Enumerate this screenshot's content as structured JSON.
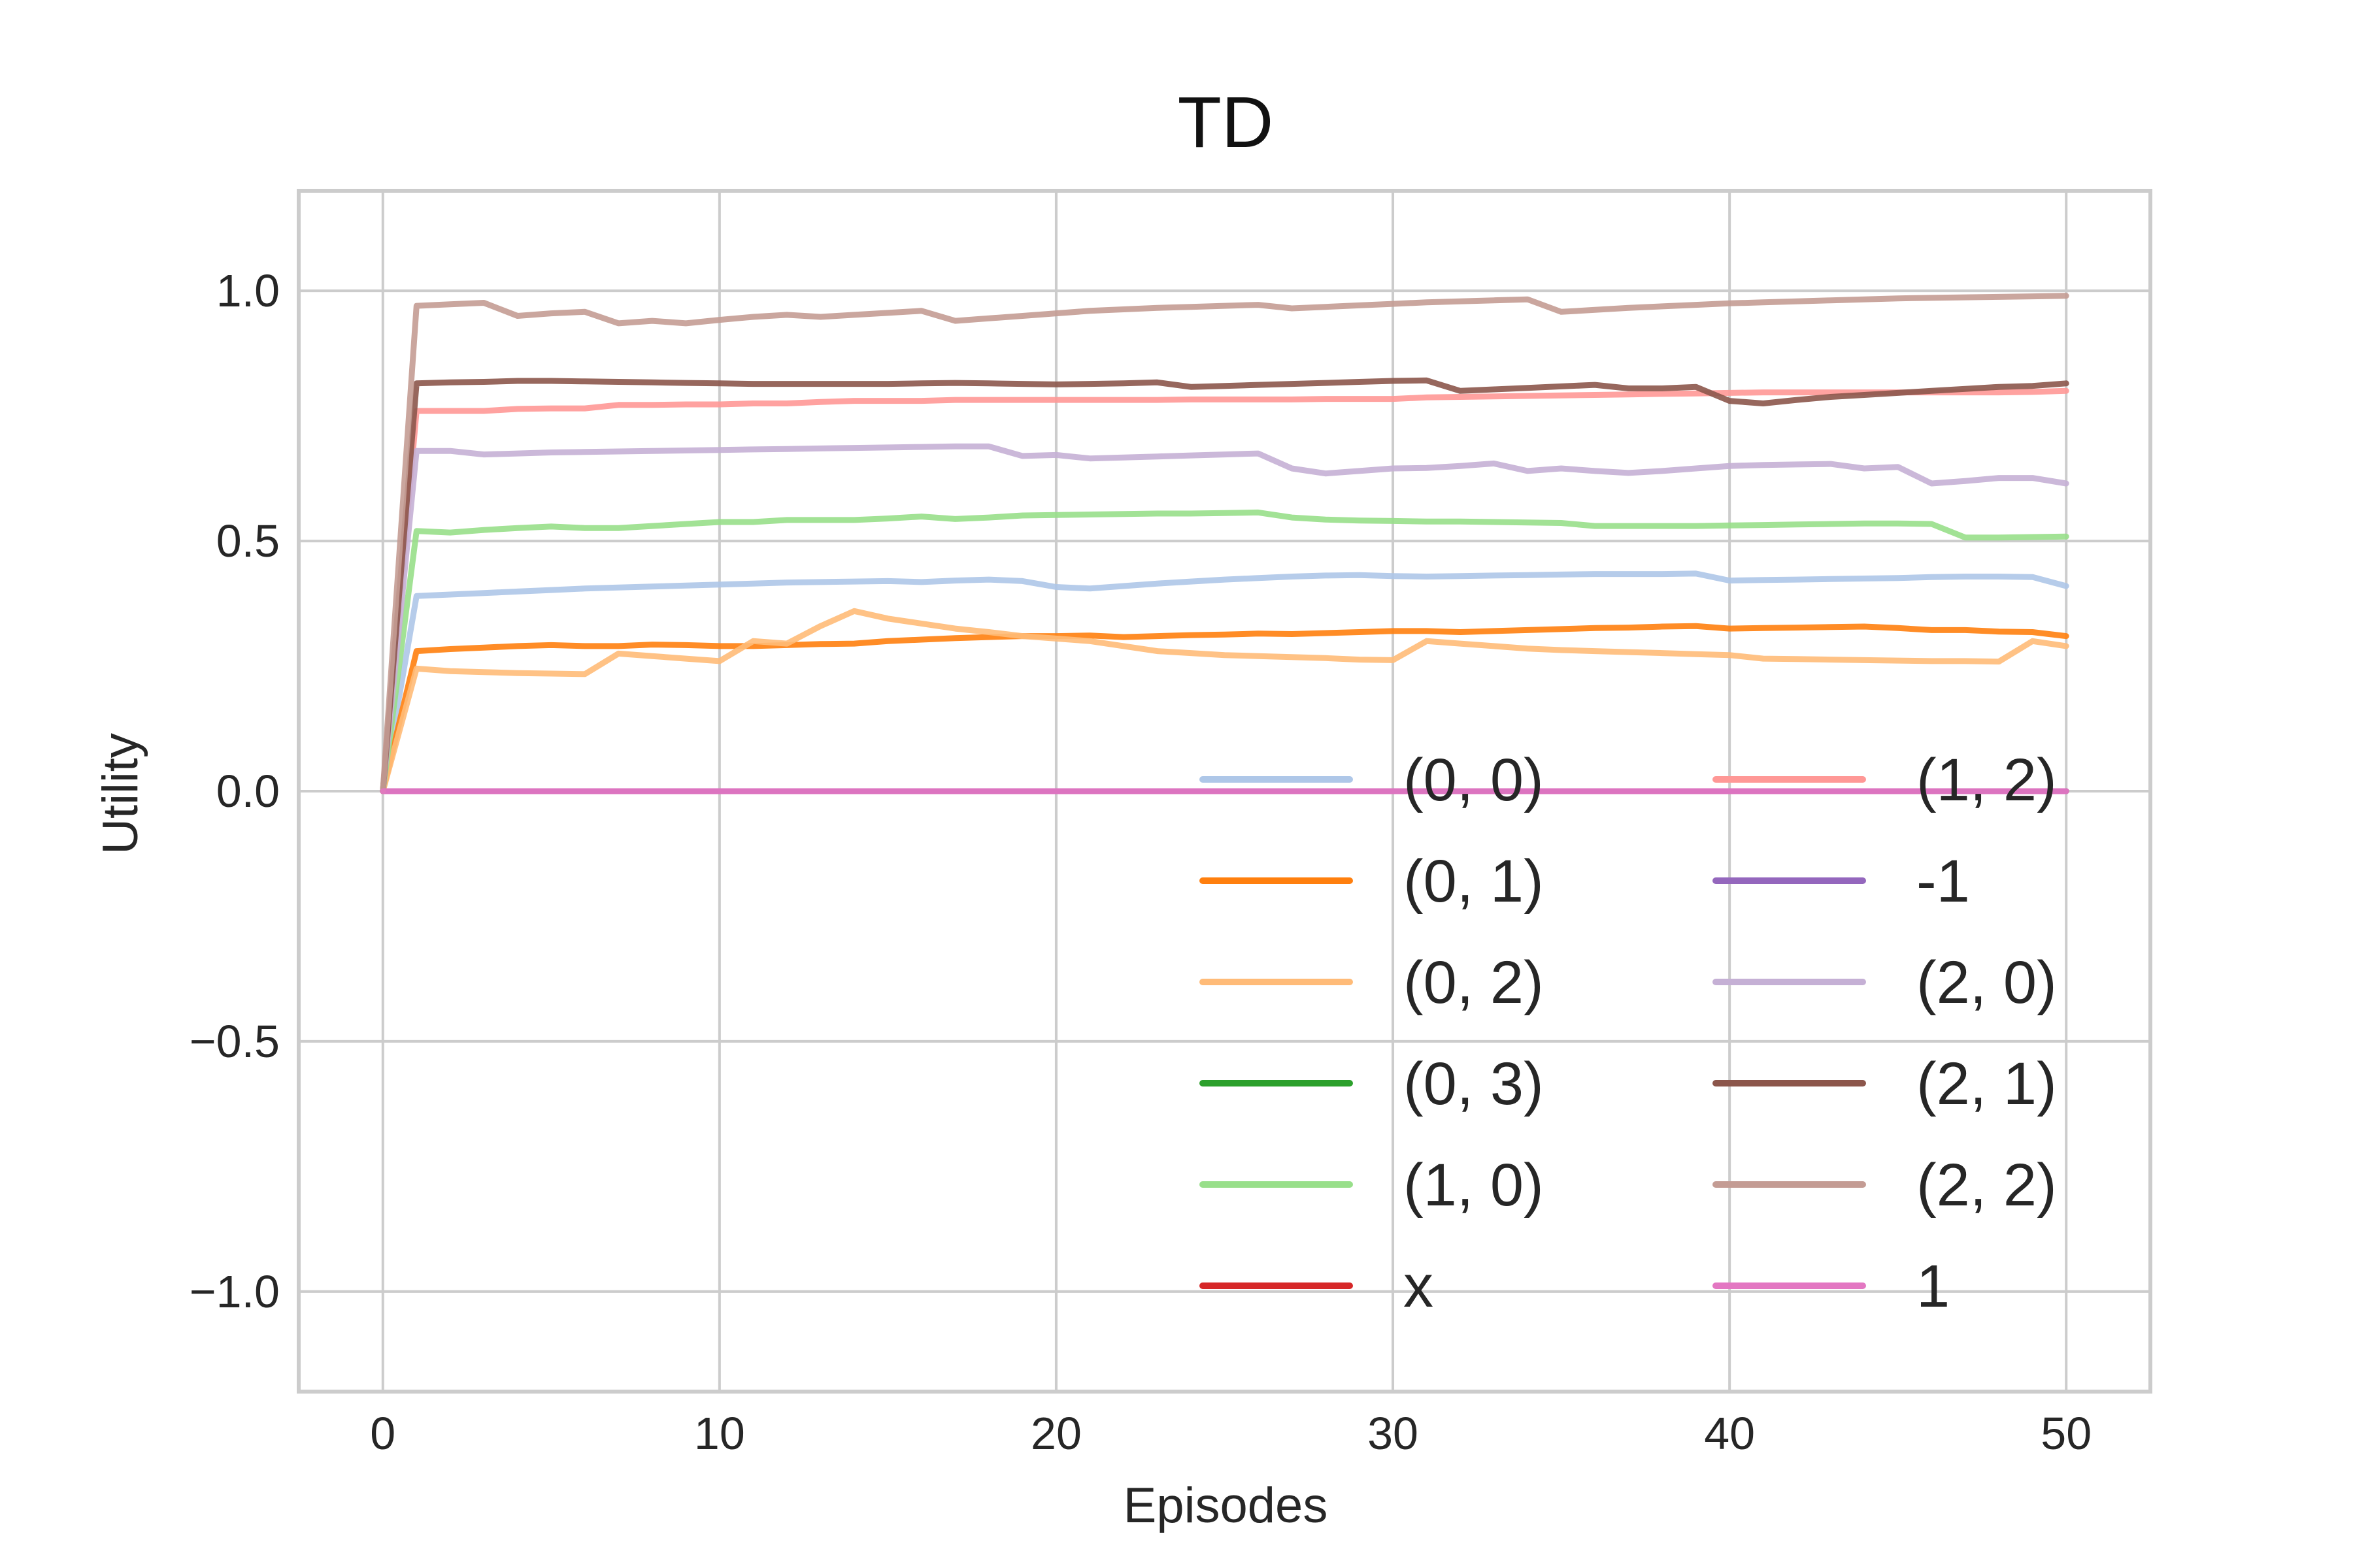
{
  "chart_data": {
    "type": "line",
    "title": "TD",
    "xlabel": "Episodes",
    "ylabel": "Utility",
    "xlim": [
      -2.5,
      52.5
    ],
    "ylim": [
      -1.2,
      1.2
    ],
    "xticks": [
      0,
      10,
      20,
      30,
      40,
      50
    ],
    "xtick_labels": [
      "0",
      "10",
      "20",
      "30",
      "40",
      "50"
    ],
    "yticks": [
      1.0,
      0.5,
      0.0,
      -0.5,
      -1.0
    ],
    "ytick_labels": [
      "1.0",
      "0.5",
      "0.0",
      "−0.5",
      "−1.0"
    ],
    "grid": true,
    "legend_placement": "lower-right, two columns",
    "x": [
      0,
      1,
      2,
      3,
      4,
      5,
      6,
      7,
      8,
      9,
      10,
      11,
      12,
      13,
      14,
      15,
      16,
      17,
      18,
      19,
      20,
      21,
      22,
      23,
      24,
      25,
      26,
      27,
      28,
      29,
      30,
      31,
      32,
      33,
      34,
      35,
      36,
      37,
      38,
      39,
      40,
      41,
      42,
      43,
      44,
      45,
      46,
      47,
      48,
      49,
      50
    ],
    "series": [
      {
        "name": "(0, 0)",
        "color": "#aec7e8",
        "values": [
          0,
          0.39,
          0.393,
          0.396,
          0.399,
          0.402,
          0.405,
          0.407,
          0.409,
          0.411,
          0.413,
          0.415,
          0.417,
          0.418,
          0.419,
          0.42,
          0.418,
          0.421,
          0.423,
          0.42,
          0.408,
          0.405,
          0.41,
          0.415,
          0.419,
          0.423,
          0.426,
          0.429,
          0.431,
          0.432,
          0.43,
          0.429,
          0.43,
          0.431,
          0.432,
          0.433,
          0.434,
          0.434,
          0.434,
          0.435,
          0.421,
          0.422,
          0.423,
          0.424,
          0.425,
          0.426,
          0.428,
          0.429,
          0.429,
          0.428,
          0.41
        ]
      },
      {
        "name": "(0, 1)",
        "color": "#ff7f0e",
        "values": [
          0,
          0.28,
          0.284,
          0.287,
          0.29,
          0.292,
          0.29,
          0.29,
          0.293,
          0.292,
          0.29,
          0.29,
          0.292,
          0.294,
          0.295,
          0.3,
          0.303,
          0.306,
          0.308,
          0.31,
          0.31,
          0.311,
          0.308,
          0.31,
          0.312,
          0.313,
          0.315,
          0.314,
          0.316,
          0.318,
          0.32,
          0.32,
          0.318,
          0.32,
          0.322,
          0.324,
          0.326,
          0.327,
          0.329,
          0.33,
          0.325,
          0.326,
          0.327,
          0.328,
          0.329,
          0.326,
          0.322,
          0.322,
          0.319,
          0.318,
          0.31
        ]
      },
      {
        "name": "(0, 2)",
        "color": "#ffbb78",
        "values": [
          0,
          0.245,
          0.24,
          0.238,
          0.236,
          0.235,
          0.234,
          0.275,
          0.27,
          0.265,
          0.26,
          0.3,
          0.295,
          0.33,
          0.36,
          0.345,
          0.335,
          0.325,
          0.318,
          0.31,
          0.305,
          0.3,
          0.29,
          0.28,
          0.276,
          0.272,
          0.27,
          0.268,
          0.266,
          0.263,
          0.262,
          0.3,
          0.295,
          0.29,
          0.285,
          0.282,
          0.28,
          0.278,
          0.276,
          0.274,
          0.272,
          0.265,
          0.264,
          0.263,
          0.262,
          0.261,
          0.26,
          0.26,
          0.259,
          0.3,
          0.29
        ]
      },
      {
        "name": "(0, 3)",
        "color": "#2ca02c",
        "values": [
          0,
          0,
          0,
          0,
          0,
          0,
          0,
          0,
          0,
          0,
          0,
          0,
          0,
          0,
          0,
          0,
          0,
          0,
          0,
          0,
          0,
          0,
          0,
          0,
          0,
          0,
          0,
          0,
          0,
          0,
          0,
          0,
          0,
          0,
          0,
          0,
          0,
          0,
          0,
          0,
          0,
          0,
          0,
          0,
          0,
          0,
          0,
          0,
          0,
          0,
          0
        ]
      },
      {
        "name": "(1, 0)",
        "color": "#98df8a",
        "values": [
          0,
          0.52,
          0.517,
          0.522,
          0.526,
          0.529,
          0.526,
          0.526,
          0.53,
          0.534,
          0.538,
          0.538,
          0.542,
          0.542,
          0.542,
          0.545,
          0.549,
          0.544,
          0.547,
          0.551,
          0.552,
          0.553,
          0.554,
          0.555,
          0.555,
          0.556,
          0.557,
          0.547,
          0.543,
          0.541,
          0.54,
          0.539,
          0.539,
          0.538,
          0.537,
          0.536,
          0.53,
          0.53,
          0.53,
          0.53,
          0.531,
          0.532,
          0.533,
          0.534,
          0.535,
          0.535,
          0.534,
          0.507,
          0.507,
          0.508,
          0.509
        ]
      },
      {
        "name": "x",
        "color": "#d62728",
        "values": [
          0,
          0,
          0,
          0,
          0,
          0,
          0,
          0,
          0,
          0,
          0,
          0,
          0,
          0,
          0,
          0,
          0,
          0,
          0,
          0,
          0,
          0,
          0,
          0,
          0,
          0,
          0,
          0,
          0,
          0,
          0,
          0,
          0,
          0,
          0,
          0,
          0,
          0,
          0,
          0,
          0,
          0,
          0,
          0,
          0,
          0,
          0,
          0,
          0,
          0,
          0
        ]
      },
      {
        "name": "(1, 2)",
        "color": "#ff9896",
        "values": [
          0,
          0.76,
          0.76,
          0.76,
          0.764,
          0.765,
          0.765,
          0.772,
          0.772,
          0.773,
          0.773,
          0.775,
          0.775,
          0.778,
          0.78,
          0.78,
          0.78,
          0.782,
          0.782,
          0.782,
          0.782,
          0.782,
          0.782,
          0.782,
          0.783,
          0.783,
          0.783,
          0.783,
          0.784,
          0.784,
          0.784,
          0.787,
          0.788,
          0.789,
          0.79,
          0.791,
          0.792,
          0.793,
          0.794,
          0.795,
          0.796,
          0.797,
          0.797,
          0.797,
          0.797,
          0.797,
          0.797,
          0.797,
          0.797,
          0.798,
          0.8
        ]
      },
      {
        "name": "-1",
        "color": "#9467bd",
        "values": [
          0,
          0,
          0,
          0,
          0,
          0,
          0,
          0,
          0,
          0,
          0,
          0,
          0,
          0,
          0,
          0,
          0,
          0,
          0,
          0,
          0,
          0,
          0,
          0,
          0,
          0,
          0,
          0,
          0,
          0,
          0,
          0,
          0,
          0,
          0,
          0,
          0,
          0,
          0,
          0,
          0,
          0,
          0,
          0,
          0,
          0,
          0,
          0,
          0,
          0,
          0
        ]
      },
      {
        "name": "(2, 0)",
        "color": "#c5b0d5",
        "values": [
          0,
          0.68,
          0.68,
          0.673,
          0.675,
          0.677,
          0.678,
          0.679,
          0.68,
          0.681,
          0.682,
          0.683,
          0.684,
          0.685,
          0.686,
          0.687,
          0.688,
          0.689,
          0.689,
          0.67,
          0.672,
          0.665,
          0.667,
          0.669,
          0.671,
          0.673,
          0.675,
          0.645,
          0.635,
          0.64,
          0.645,
          0.646,
          0.65,
          0.655,
          0.64,
          0.645,
          0.64,
          0.636,
          0.64,
          0.645,
          0.65,
          0.652,
          0.653,
          0.654,
          0.645,
          0.648,
          0.615,
          0.62,
          0.626,
          0.626,
          0.615
        ]
      },
      {
        "name": "(2, 1)",
        "color": "#8c564b",
        "values": [
          0,
          0.815,
          0.817,
          0.818,
          0.82,
          0.82,
          0.819,
          0.818,
          0.817,
          0.816,
          0.815,
          0.814,
          0.814,
          0.814,
          0.814,
          0.814,
          0.815,
          0.816,
          0.815,
          0.814,
          0.813,
          0.814,
          0.815,
          0.817,
          0.808,
          0.81,
          0.812,
          0.814,
          0.816,
          0.818,
          0.82,
          0.821,
          0.8,
          0.803,
          0.806,
          0.809,
          0.812,
          0.805,
          0.805,
          0.808,
          0.78,
          0.775,
          0.782,
          0.788,
          0.792,
          0.796,
          0.8,
          0.804,
          0.808,
          0.81,
          0.815
        ]
      },
      {
        "name": "(2, 2)",
        "color": "#c49c94",
        "values": [
          0,
          0.97,
          0.973,
          0.976,
          0.95,
          0.955,
          0.958,
          0.935,
          0.94,
          0.935,
          0.942,
          0.948,
          0.952,
          0.948,
          0.952,
          0.956,
          0.96,
          0.94,
          0.945,
          0.95,
          0.955,
          0.96,
          0.963,
          0.966,
          0.968,
          0.97,
          0.972,
          0.965,
          0.968,
          0.971,
          0.974,
          0.977,
          0.979,
          0.981,
          0.983,
          0.958,
          0.962,
          0.966,
          0.969,
          0.972,
          0.975,
          0.977,
          0.979,
          0.981,
          0.983,
          0.985,
          0.986,
          0.987,
          0.988,
          0.989,
          0.99
        ]
      },
      {
        "name": "1",
        "color": "#e377c2",
        "values": [
          0,
          0,
          0,
          0,
          0,
          0,
          0,
          0,
          0,
          0,
          0,
          0,
          0,
          0,
          0,
          0,
          0,
          0,
          0,
          0,
          0,
          0,
          0,
          0,
          0,
          0,
          0,
          0,
          0,
          0,
          0,
          0,
          0,
          0,
          0,
          0,
          0,
          0,
          0,
          0,
          0,
          0,
          0,
          0,
          0,
          0,
          0,
          0,
          0,
          0,
          0
        ]
      }
    ]
  }
}
